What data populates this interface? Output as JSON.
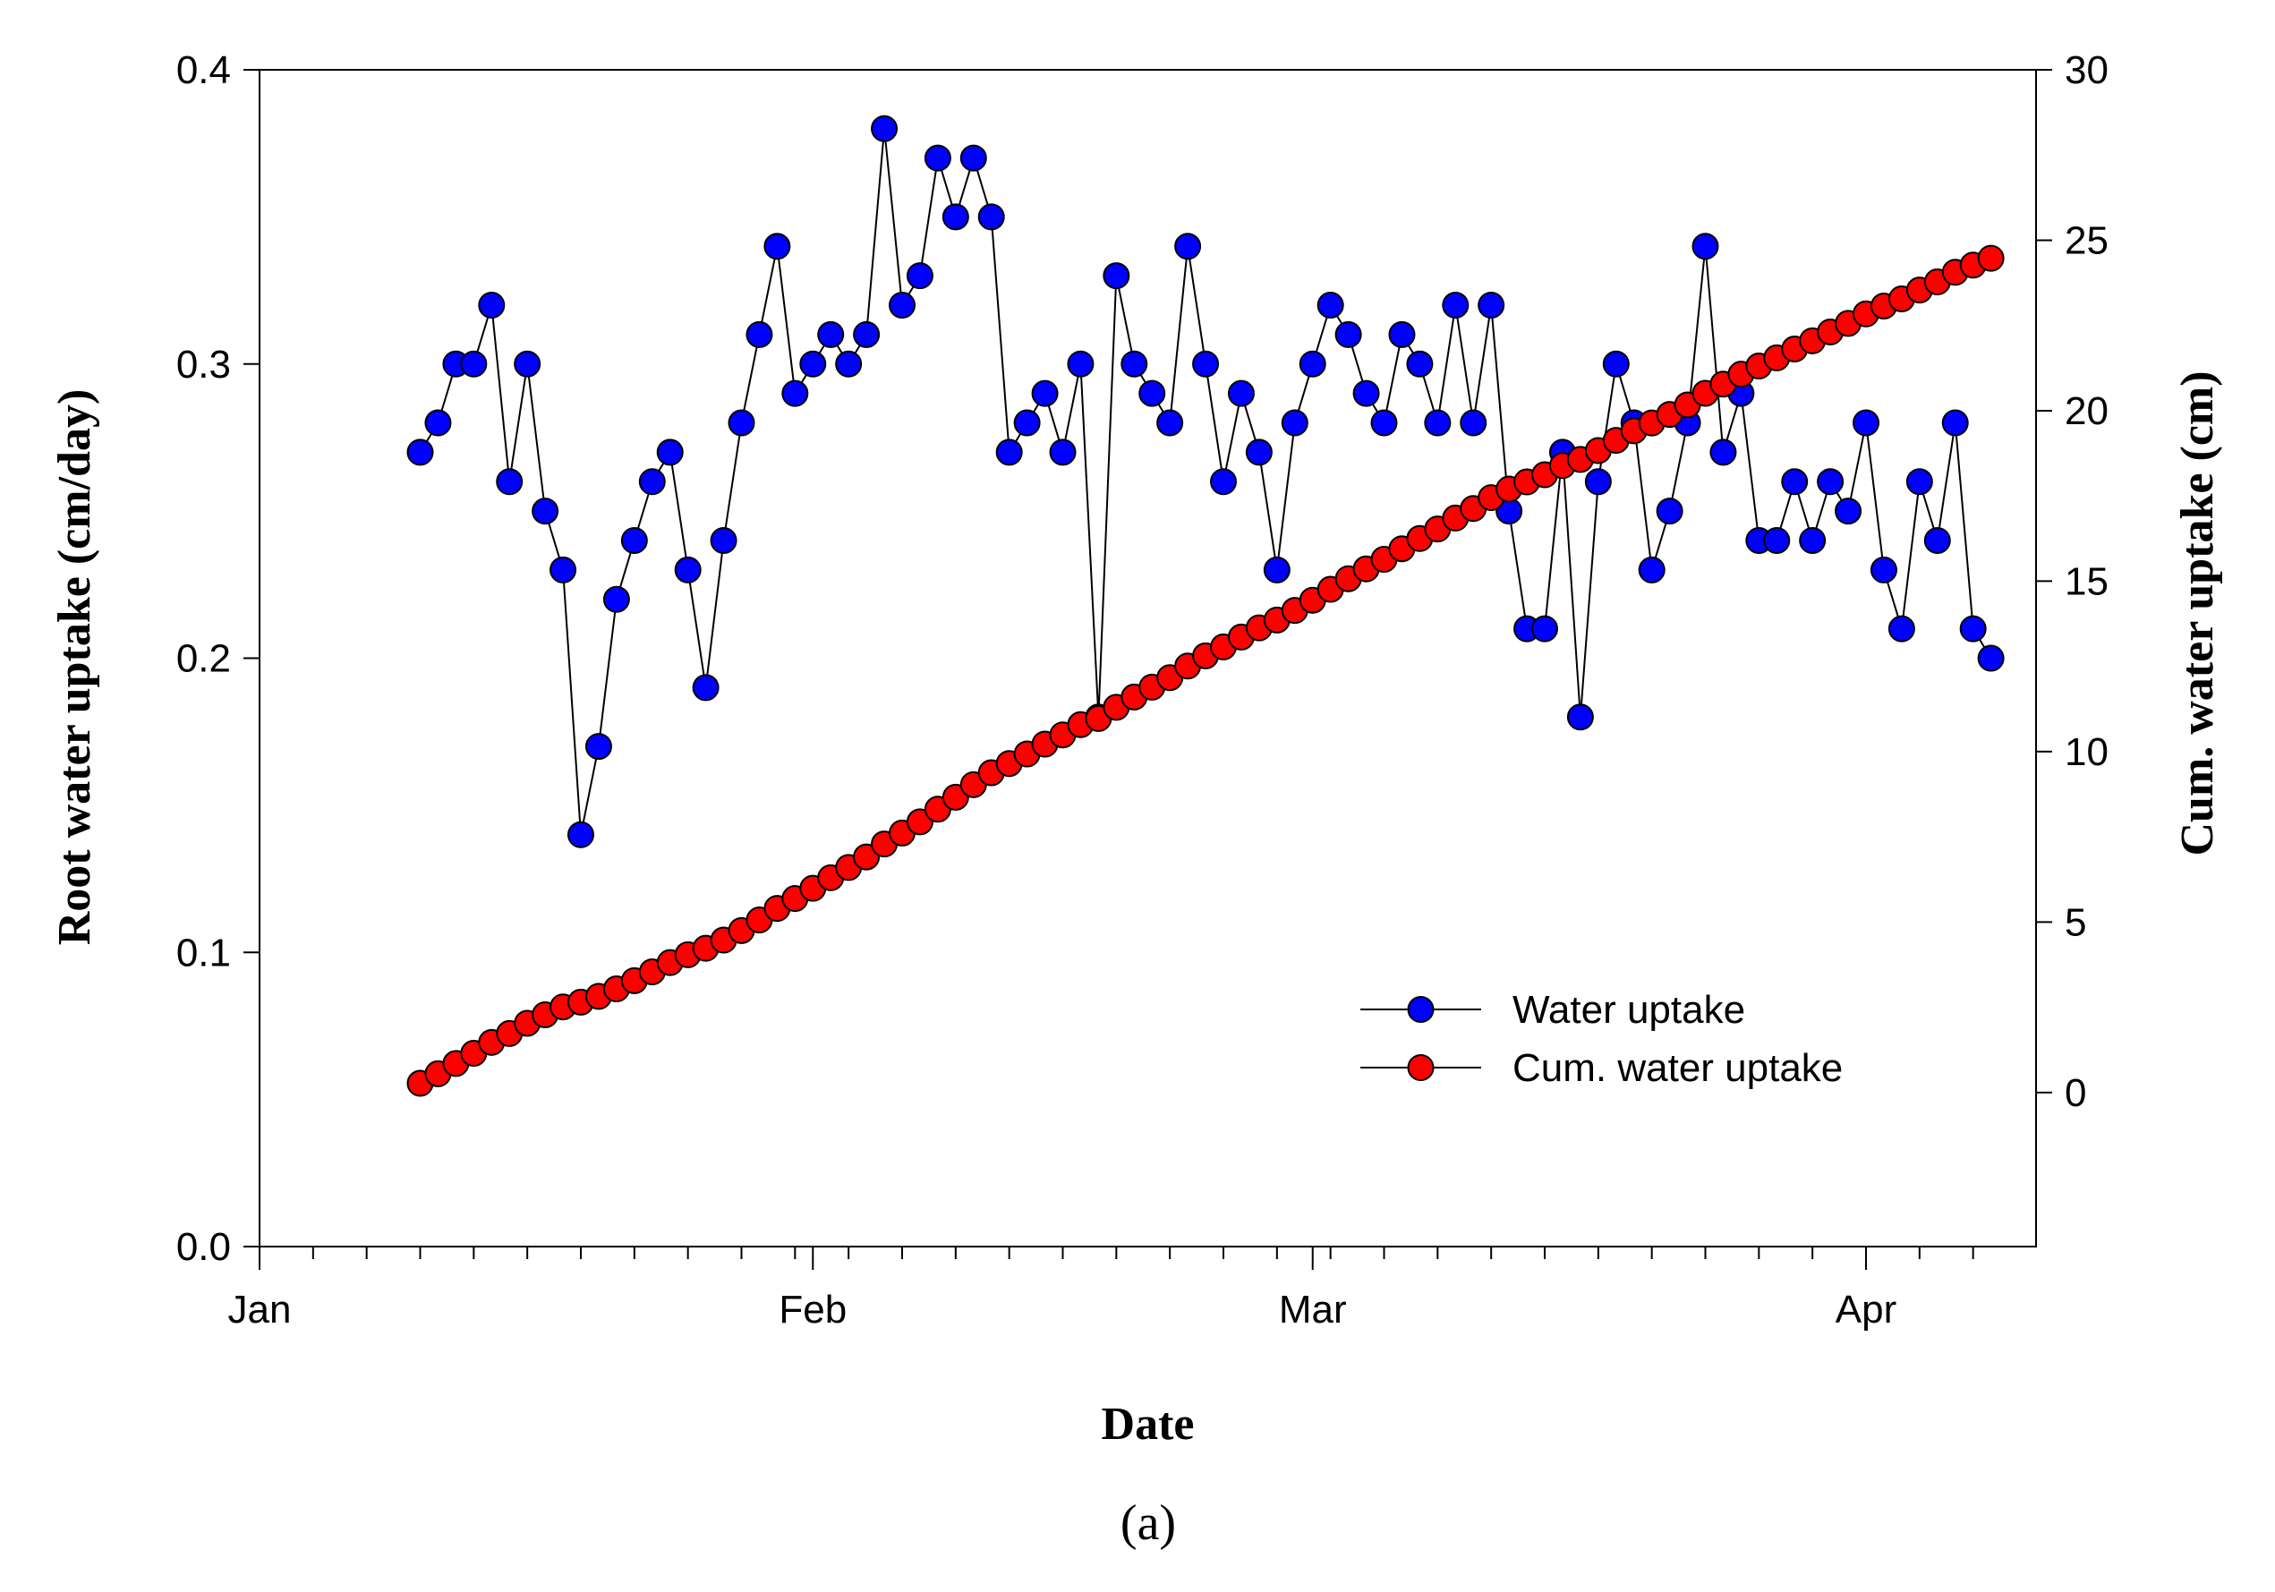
{
  "chart_data": {
    "type": "line",
    "title": "",
    "panel_label": "(a)",
    "xlabel": "Date",
    "ylabel_left": "Root water uptake (cm/day)",
    "ylabel_right": "Cum. water uptake (cm)",
    "x_ticks": [
      {
        "label": "Jan",
        "day": 0
      },
      {
        "label": "Feb",
        "day": 31
      },
      {
        "label": "Mar",
        "day": 59
      },
      {
        "label": "Apr",
        "day": 90
      }
    ],
    "xlim_days": [
      0,
      98
    ],
    "ylim_left": [
      0.0,
      0.4
    ],
    "yticks_left": [
      "0.0",
      "0.1",
      "0.2",
      "0.3",
      "0.4"
    ],
    "ylim_right": [
      -4.52,
      30
    ],
    "yticks_right": [
      "0",
      "5",
      "10",
      "15",
      "20",
      "25",
      "30"
    ],
    "legend": {
      "position": "lower-right",
      "entries": [
        "Water uptake",
        "Cum. water uptake"
      ]
    },
    "colors": {
      "water_uptake": "#0000ff",
      "cum_water_uptake": "#ff0000",
      "line": "#000000"
    },
    "series": [
      {
        "name": "Water uptake",
        "axis": "left",
        "start_day": 9,
        "values": [
          0.27,
          0.28,
          0.3,
          0.3,
          0.32,
          0.26,
          0.3,
          0.25,
          0.23,
          0.14,
          0.17,
          0.22,
          0.24,
          0.26,
          0.27,
          0.23,
          0.19,
          0.24,
          0.28,
          0.31,
          0.34,
          0.29,
          0.3,
          0.31,
          0.3,
          0.31,
          0.38,
          0.32,
          0.33,
          0.37,
          0.35,
          0.37,
          0.35,
          0.27,
          0.28,
          0.29,
          0.27,
          0.3,
          0.18,
          0.33,
          0.3,
          0.29,
          0.28,
          0.34,
          0.3,
          0.26,
          0.29,
          0.27,
          0.23,
          0.28,
          0.3,
          0.32,
          0.31,
          0.29,
          0.28,
          0.31,
          0.3,
          0.28,
          0.32,
          0.28,
          0.32,
          0.25,
          0.21,
          0.21,
          0.27,
          0.18,
          0.26,
          0.3,
          0.28,
          0.23,
          0.25,
          0.28,
          0.34,
          0.27,
          0.29,
          0.24,
          0.24,
          0.26,
          0.24,
          0.26,
          0.25,
          0.28,
          0.23,
          0.21,
          0.26,
          0.24,
          0.28,
          0.21,
          0.2
        ]
      },
      {
        "name": "Cum. water uptake",
        "axis": "right",
        "start_day": 9,
        "values": [
          0.27,
          0.55,
          0.85,
          1.15,
          1.47,
          1.73,
          2.03,
          2.28,
          2.51,
          2.65,
          2.82,
          3.04,
          3.28,
          3.54,
          3.81,
          4.04,
          4.23,
          4.47,
          4.75,
          5.06,
          5.4,
          5.69,
          5.99,
          6.3,
          6.6,
          6.91,
          7.29,
          7.61,
          7.94,
          8.31,
          8.66,
          9.03,
          9.38,
          9.65,
          9.93,
          10.22,
          10.49,
          10.79,
          10.97,
          11.3,
          11.6,
          11.89,
          12.17,
          12.51,
          12.81,
          13.07,
          13.36,
          13.63,
          13.86,
          14.14,
          14.44,
          14.76,
          15.07,
          15.36,
          15.64,
          15.95,
          16.25,
          16.53,
          16.85,
          17.13,
          17.45,
          17.7,
          17.91,
          18.12,
          18.39,
          18.57,
          18.83,
          19.13,
          19.41,
          19.64,
          19.89,
          20.17,
          20.51,
          20.78,
          21.07,
          21.31,
          21.55,
          21.81,
          22.05,
          22.31,
          22.56,
          22.84,
          23.07,
          23.28,
          23.54,
          23.78,
          24.06,
          24.27,
          24.47
        ]
      }
    ]
  }
}
